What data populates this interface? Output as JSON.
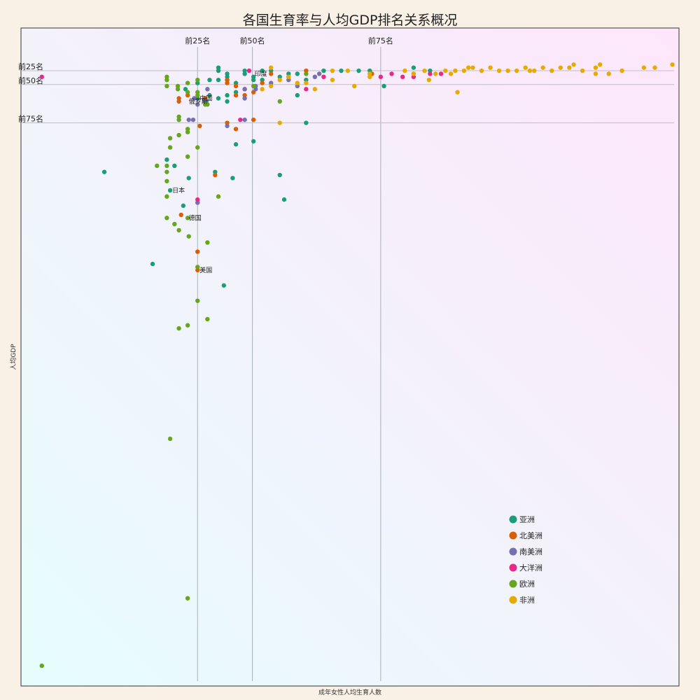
{
  "chart_data": {
    "type": "scatter",
    "title": "各国生育率与人均GDP排名关系概况",
    "xlabel": "成年女性人均生育人数",
    "ylabel": "人均GDP",
    "x_range": [
      1.12,
      7.12
    ],
    "y_range_rank": [
      1,
      208
    ],
    "grid": false,
    "legend_position": "bottom-right",
    "x_reference_lines": [
      {
        "label": "前25名",
        "x": 2.73
      },
      {
        "label": "前50名",
        "x": 3.23
      },
      {
        "label": "前75名",
        "x": 4.4
      }
    ],
    "y_reference_lines": [
      {
        "label": "前25名",
        "y_rank": 9
      },
      {
        "label": "前50名",
        "y_rank": 13.5
      },
      {
        "label": "前75名",
        "y_rank": 26
      }
    ],
    "annotations": [
      {
        "text": "印度",
        "x": 3.23,
        "y_rank": 10
      },
      {
        "text": "中国",
        "x": 2.73,
        "y_rank": 18
      },
      {
        "text": "俄罗斯",
        "x": 2.63,
        "y_rank": 19
      },
      {
        "text": "日本",
        "x": 2.48,
        "y_rank": 48
      },
      {
        "text": "德国",
        "x": 2.63,
        "y_rank": 57
      },
      {
        "text": "美国",
        "x": 2.73,
        "y_rank": 74
      }
    ],
    "series": [
      {
        "name": "亚洲",
        "color": "#1b9e77",
        "points": [
          [
            2.92,
            8
          ],
          [
            2.92,
            9
          ],
          [
            3.0,
            10
          ],
          [
            3.0,
            11
          ],
          [
            3.16,
            9
          ],
          [
            3.16,
            10
          ],
          [
            3.24,
            11
          ],
          [
            3.32,
            9
          ],
          [
            3.4,
            9
          ],
          [
            3.48,
            11
          ],
          [
            3.56,
            10
          ],
          [
            3.56,
            11
          ],
          [
            3.64,
            10
          ],
          [
            3.72,
            12
          ],
          [
            3.88,
            9
          ],
          [
            4.04,
            9
          ],
          [
            4.2,
            9
          ],
          [
            4.3,
            9
          ],
          [
            4.43,
            14
          ],
          [
            4.7,
            8
          ],
          [
            4.85,
            9
          ],
          [
            3.32,
            12
          ],
          [
            3.24,
            12
          ],
          [
            3.08,
            13
          ],
          [
            3.0,
            12
          ],
          [
            2.92,
            12
          ],
          [
            2.84,
            12
          ],
          [
            2.73,
            13
          ],
          [
            2.62,
            15
          ],
          [
            3.08,
            16
          ],
          [
            3.0,
            17
          ],
          [
            2.92,
            18
          ],
          [
            2.84,
            17
          ],
          [
            2.73,
            18
          ],
          [
            2.81,
            19
          ],
          [
            3.64,
            17
          ],
          [
            3.0,
            19
          ],
          [
            3.72,
            26
          ],
          [
            3.24,
            32
          ],
          [
            3.08,
            33
          ],
          [
            2.45,
            38
          ],
          [
            2.52,
            40
          ],
          [
            2.89,
            42
          ],
          [
            3.48,
            43
          ],
          [
            3.05,
            44
          ],
          [
            2.65,
            44
          ],
          [
            2.48,
            48
          ],
          [
            3.52,
            51
          ],
          [
            2.6,
            53
          ],
          [
            2.32,
            72
          ],
          [
            2.97,
            79
          ],
          [
            1.88,
            42
          ]
        ]
      },
      {
        "name": "北美洲",
        "color": "#d95f02",
        "points": [
          [
            3.0,
            13
          ],
          [
            3.08,
            14
          ],
          [
            3.16,
            15
          ],
          [
            3.24,
            16
          ],
          [
            3.32,
            13
          ],
          [
            3.08,
            17
          ],
          [
            3.16,
            17
          ],
          [
            3.4,
            10
          ],
          [
            3.72,
            9
          ],
          [
            4.32,
            10
          ],
          [
            2.56,
            18
          ],
          [
            2.56,
            19
          ],
          [
            2.64,
            17
          ],
          [
            2.75,
            27
          ],
          [
            3.0,
            26
          ],
          [
            3.08,
            28
          ],
          [
            3.24,
            25
          ],
          [
            2.89,
            43
          ],
          [
            2.73,
            52
          ],
          [
            2.58,
            56
          ],
          [
            2.73,
            68
          ],
          [
            2.73,
            74
          ],
          [
            3.0,
            12
          ],
          [
            2.8,
            18
          ]
        ]
      },
      {
        "name": "南美洲",
        "color": "#7570b3",
        "points": [
          [
            2.82,
            15
          ],
          [
            2.7,
            18
          ],
          [
            2.65,
            25
          ],
          [
            2.69,
            25
          ],
          [
            2.73,
            20
          ],
          [
            2.8,
            19
          ],
          [
            3.0,
            27
          ],
          [
            3.16,
            25
          ],
          [
            3.16,
            18
          ],
          [
            3.16,
            15
          ],
          [
            3.26,
            14
          ],
          [
            3.26,
            15
          ],
          [
            3.4,
            13
          ],
          [
            3.56,
            12
          ],
          [
            3.64,
            14
          ],
          [
            3.8,
            11
          ],
          [
            3.84,
            10
          ],
          [
            2.73,
            52
          ]
        ]
      },
      {
        "name": "大洋洲",
        "color": "#e7298a",
        "points": [
          [
            1.31,
            11
          ],
          [
            3.12,
            25
          ],
          [
            3.72,
            15
          ],
          [
            3.88,
            11
          ],
          [
            4.4,
            11
          ],
          [
            4.5,
            10
          ],
          [
            4.6,
            11
          ],
          [
            4.7,
            11
          ],
          [
            4.85,
            10
          ],
          [
            4.95,
            10
          ],
          [
            3.2,
            9
          ],
          [
            2.73,
            51
          ]
        ]
      },
      {
        "name": "欧洲",
        "color": "#66a61e",
        "points": [
          [
            2.45,
            11
          ],
          [
            2.45,
            12
          ],
          [
            2.45,
            14
          ],
          [
            2.55,
            14
          ],
          [
            2.64,
            13
          ],
          [
            2.55,
            15
          ],
          [
            2.64,
            16
          ],
          [
            2.73,
            17
          ],
          [
            2.82,
            20
          ],
          [
            2.73,
            16
          ],
          [
            2.56,
            24
          ],
          [
            2.56,
            25
          ],
          [
            2.64,
            28
          ],
          [
            2.64,
            29
          ],
          [
            2.56,
            30
          ],
          [
            2.48,
            31
          ],
          [
            2.48,
            34
          ],
          [
            2.64,
            37
          ],
          [
            2.73,
            34
          ],
          [
            2.36,
            40
          ],
          [
            2.45,
            40
          ],
          [
            2.45,
            42
          ],
          [
            2.45,
            45
          ],
          [
            2.45,
            50
          ],
          [
            2.64,
            57
          ],
          [
            2.45,
            57
          ],
          [
            2.56,
            61
          ],
          [
            2.65,
            63
          ],
          [
            2.52,
            59
          ],
          [
            2.82,
            65
          ],
          [
            2.73,
            73
          ],
          [
            2.73,
            84
          ],
          [
            2.82,
            90
          ],
          [
            2.56,
            93
          ],
          [
            2.64,
            92
          ],
          [
            2.48,
            129
          ],
          [
            2.64,
            181
          ],
          [
            1.31,
            203
          ],
          [
            2.92,
            50
          ],
          [
            3.48,
            19
          ],
          [
            3.72,
            10
          ],
          [
            2.73,
            12
          ],
          [
            3.24,
            14
          ],
          [
            2.8,
            20
          ]
        ]
      },
      {
        "name": "非洲",
        "color": "#e6ab02",
        "points": [
          [
            3.72,
            13
          ],
          [
            3.4,
            14
          ],
          [
            3.32,
            15
          ],
          [
            3.48,
            12
          ],
          [
            3.64,
            13
          ],
          [
            3.8,
            15
          ],
          [
            3.96,
            12
          ],
          [
            4.16,
            14
          ],
          [
            4.3,
            11
          ],
          [
            4.7,
            10
          ],
          [
            4.8,
            9
          ],
          [
            4.9,
            10
          ],
          [
            4.99,
            9
          ],
          [
            5.08,
            9
          ],
          [
            5.16,
            9
          ],
          [
            5.24,
            8
          ],
          [
            5.32,
            9
          ],
          [
            5.4,
            8
          ],
          [
            5.48,
            9
          ],
          [
            5.56,
            9
          ],
          [
            5.64,
            9
          ],
          [
            5.72,
            8
          ],
          [
            5.8,
            9
          ],
          [
            5.88,
            8
          ],
          [
            5.96,
            9
          ],
          [
            6.04,
            8
          ],
          [
            6.12,
            8
          ],
          [
            6.24,
            9
          ],
          [
            6.36,
            8
          ],
          [
            6.48,
            10
          ],
          [
            6.6,
            9
          ],
          [
            6.8,
            8
          ],
          [
            6.9,
            8
          ],
          [
            7.06,
            7
          ],
          [
            6.36,
            10
          ],
          [
            5.76,
            9
          ],
          [
            6.16,
            7
          ],
          [
            6.4,
            7
          ],
          [
            4.84,
            12
          ],
          [
            5.1,
            16
          ],
          [
            4.7,
            10
          ],
          [
            4.62,
            9
          ],
          [
            4.3,
            10
          ],
          [
            4.1,
            9
          ],
          [
            3.96,
            9
          ],
          [
            3.56,
            11
          ],
          [
            3.4,
            8
          ],
          [
            3.48,
            26
          ],
          [
            5.04,
            10
          ],
          [
            5.2,
            8
          ]
        ]
      }
    ]
  }
}
